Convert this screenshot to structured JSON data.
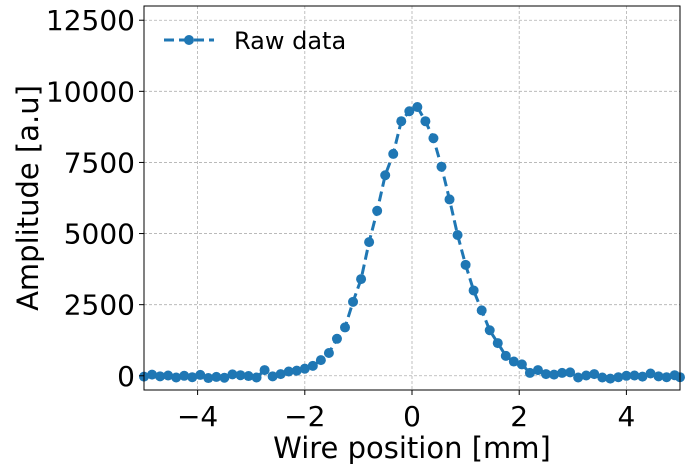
{
  "chart_data": {
    "type": "line",
    "title": "",
    "xlabel": "Wire position [mm]",
    "ylabel": "Amplitude [a.u]",
    "xlim": [
      -5,
      5
    ],
    "ylim": [
      -500,
      13000
    ],
    "xticks": [
      -4,
      -2,
      0,
      2,
      4
    ],
    "xtick_labels": [
      "−4",
      "−2",
      "0",
      "2",
      "4"
    ],
    "yticks": [
      0,
      2500,
      5000,
      7500,
      10000,
      12500
    ],
    "ytick_labels": [
      "0",
      "2500",
      "5000",
      "7500",
      "10000",
      "12500"
    ],
    "grid": true,
    "legend_position": "top-left",
    "series": [
      {
        "name": "Raw data",
        "color": "#1f77b4",
        "line_style": "dashed",
        "marker": "circle",
        "x": [
          -5.0,
          -4.85,
          -4.7,
          -4.55,
          -4.4,
          -4.25,
          -4.1,
          -3.95,
          -3.8,
          -3.65,
          -3.5,
          -3.35,
          -3.2,
          -3.05,
          -2.9,
          -2.75,
          -2.6,
          -2.45,
          -2.3,
          -2.15,
          -2.0,
          -1.85,
          -1.7,
          -1.55,
          -1.4,
          -1.25,
          -1.1,
          -0.95,
          -0.8,
          -0.65,
          -0.5,
          -0.35,
          -0.2,
          -0.05,
          0.1,
          0.25,
          0.4,
          0.55,
          0.7,
          0.85,
          1.0,
          1.15,
          1.3,
          1.45,
          1.6,
          1.75,
          1.9,
          2.05,
          2.2,
          2.35,
          2.5,
          2.65,
          2.8,
          2.95,
          3.1,
          3.25,
          3.4,
          3.55,
          3.7,
          3.85,
          4.0,
          4.15,
          4.3,
          4.45,
          4.6,
          4.75,
          4.9,
          5.0
        ],
        "y": [
          -30,
          40,
          -20,
          10,
          -60,
          0,
          -50,
          30,
          -80,
          -40,
          -70,
          50,
          20,
          -10,
          -60,
          200,
          -20,
          60,
          150,
          180,
          250,
          350,
          550,
          800,
          1300,
          1700,
          2600,
          3400,
          4700,
          5800,
          7050,
          7800,
          8950,
          9300,
          9450,
          8950,
          8350,
          7350,
          6200,
          4950,
          3900,
          3000,
          2300,
          1600,
          1150,
          700,
          500,
          400,
          100,
          200,
          60,
          40,
          100,
          120,
          -60,
          10,
          60,
          -60,
          -100,
          -50,
          0,
          10,
          -30,
          80,
          -20,
          -50,
          20,
          -50
        ]
      }
    ]
  }
}
